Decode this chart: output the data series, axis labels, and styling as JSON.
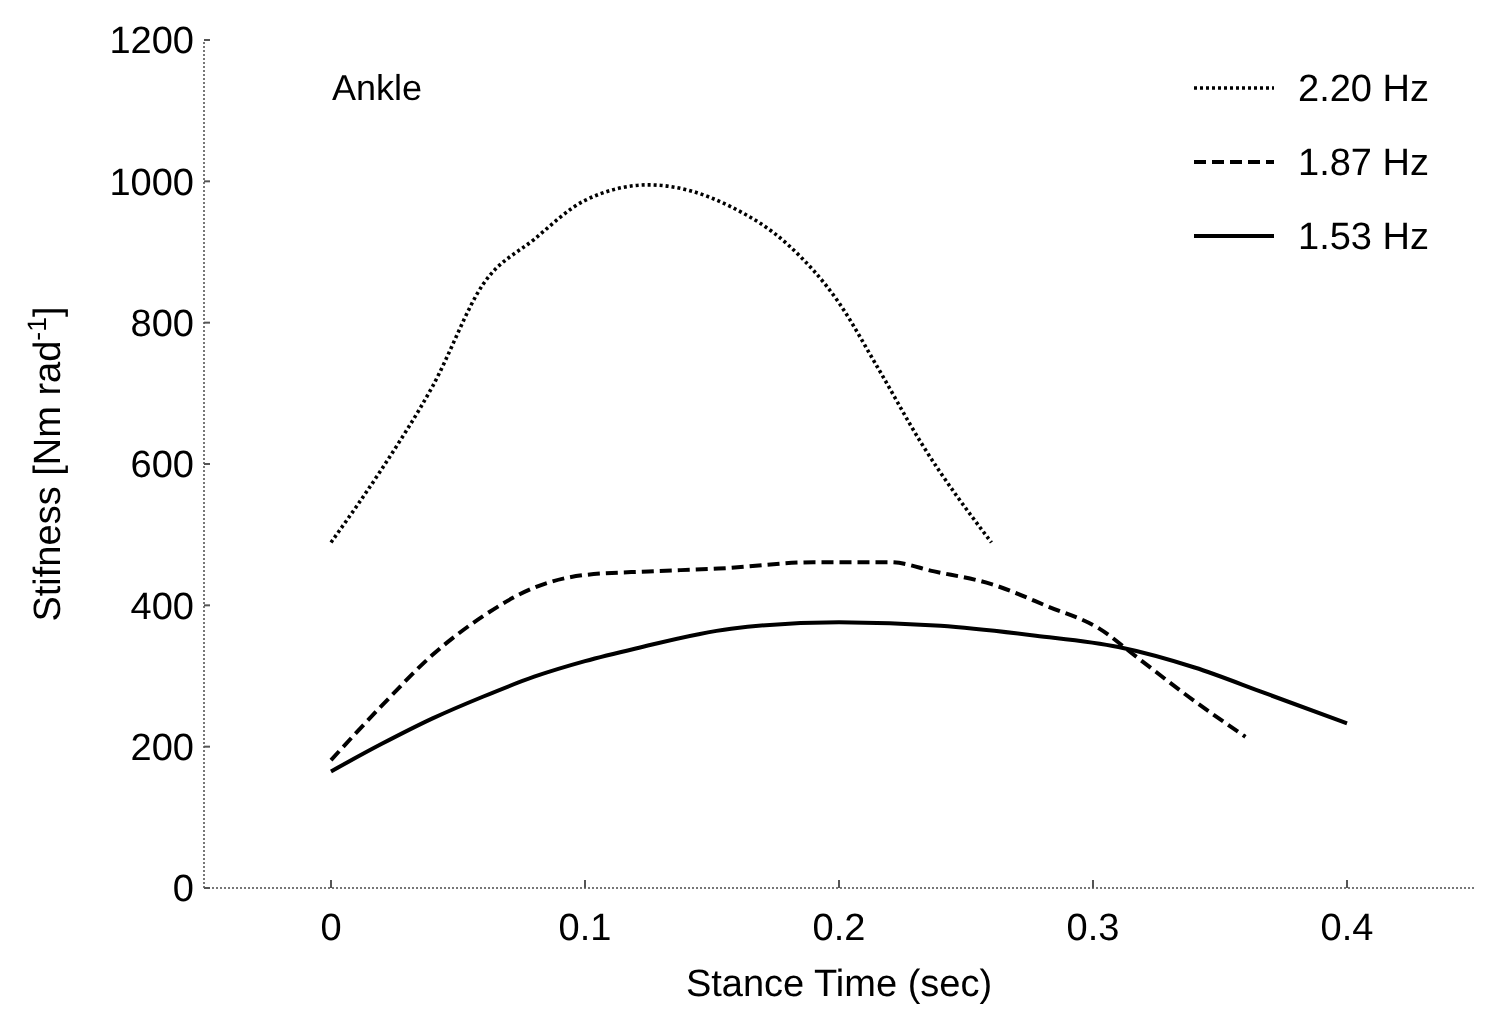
{
  "chart_data": {
    "type": "line",
    "xlabel": "Stance Time (sec)",
    "ylabel": "Stifness [Nm rad$^{-1}$]",
    "annotations": [
      "Ankle"
    ],
    "xlim": [
      -0.05,
      0.45
    ],
    "xticks": [
      0,
      0.1,
      0.2,
      0.3,
      0.4
    ],
    "ylim": [
      0,
      1200
    ],
    "yticks": [
      0,
      200,
      400,
      600,
      800,
      1000,
      1200
    ],
    "legend": "top right",
    "marker": "none",
    "series": [
      {
        "name": "2.20 Hz",
        "color": "#000000",
        "line_style": "dotted",
        "x": [
          0,
          0.02,
          0.04,
          0.06,
          0.08,
          0.1,
          0.125,
          0.1575,
          0.18,
          0.2,
          0.215,
          0.2325,
          0.26
        ],
        "values": [
          489,
          593,
          710,
          855,
          918,
          973,
          995,
          964,
          910,
          828,
          738,
          629,
          489
        ]
      },
      {
        "name": "1.87 Hz",
        "color": "#000000",
        "line_style": "dashed",
        "x": [
          0,
          0.02,
          0.04,
          0.06,
          0.08,
          0.1,
          0.125,
          0.1525,
          0.19,
          0.22,
          0.2375,
          0.26,
          0.2825,
          0.3025,
          0.3175,
          0.3375,
          0.36
        ],
        "values": [
          181,
          258,
          330,
          385,
          425,
          443,
          448,
          452,
          461,
          461,
          448,
          430,
          398,
          367,
          326,
          271,
          214
        ]
      },
      {
        "name": "1.53 Hz",
        "color": "#000000",
        "line_style": "solid",
        "x": [
          0,
          0.02,
          0.04,
          0.06,
          0.08,
          0.1,
          0.12,
          0.1575,
          0.2,
          0.24,
          0.2775,
          0.31,
          0.34,
          0.3675,
          0.4
        ],
        "values": [
          165,
          204,
          240,
          271,
          299,
          321,
          339,
          367,
          376,
          371,
          357,
          341,
          312,
          276,
          233
        ]
      }
    ]
  }
}
